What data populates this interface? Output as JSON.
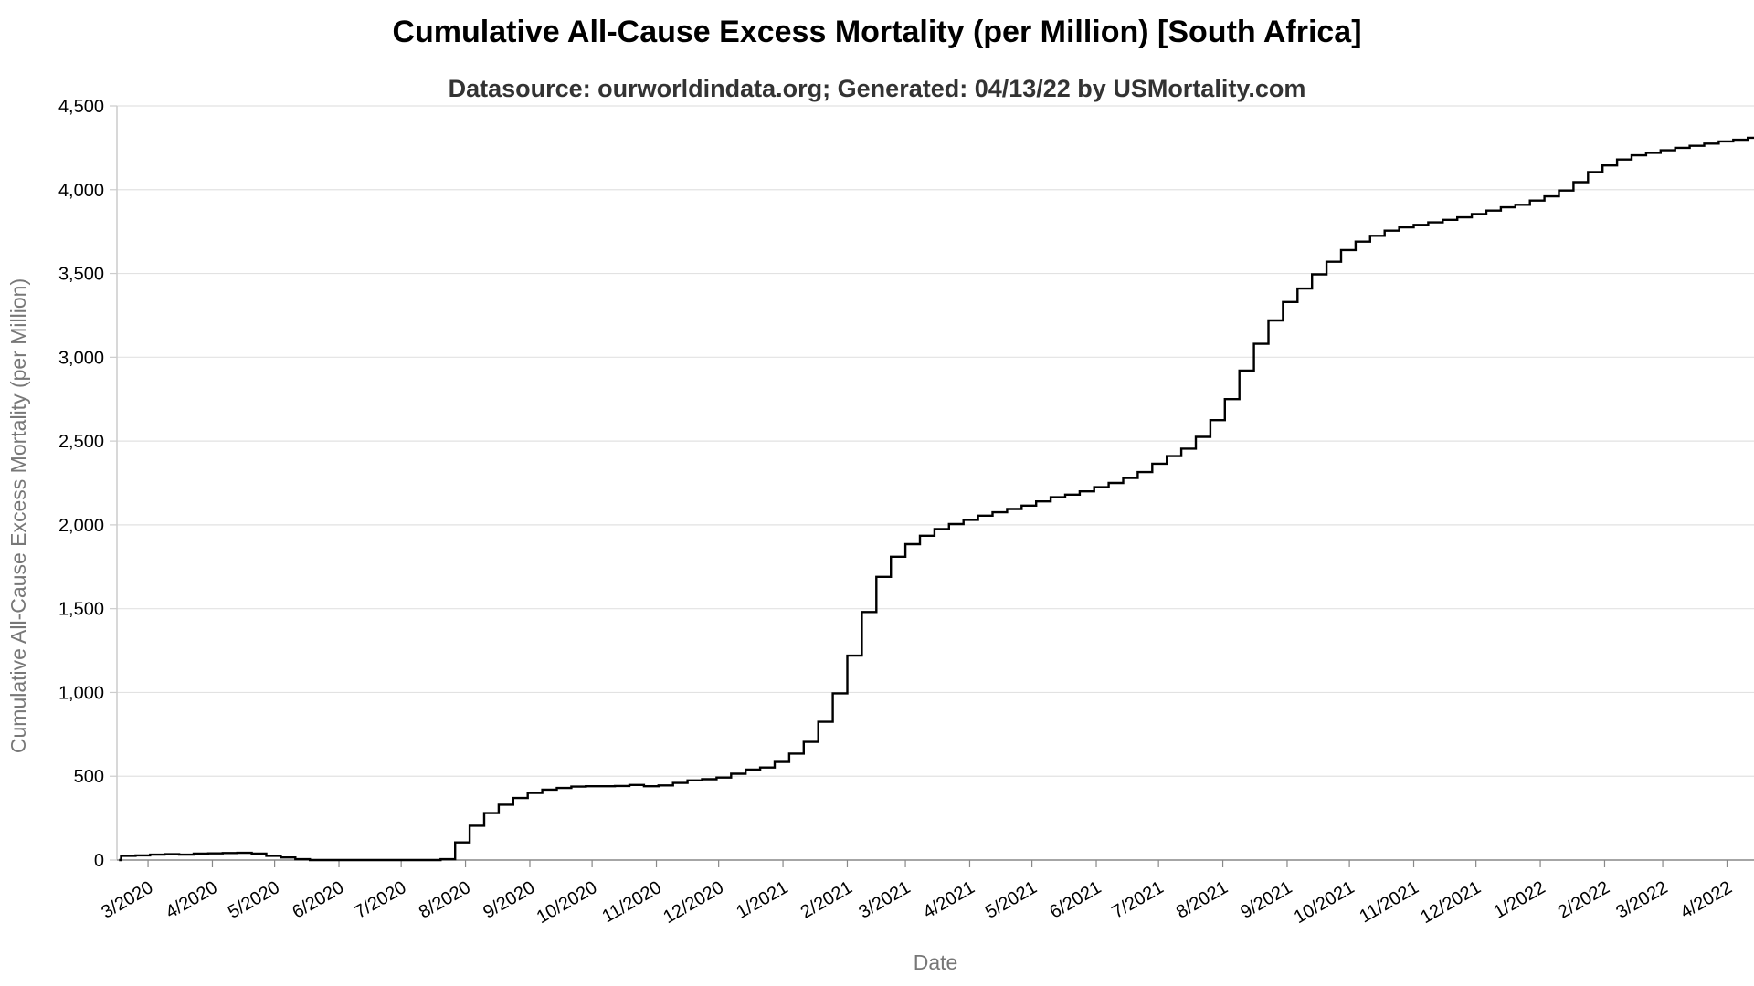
{
  "chart_data": {
    "type": "line",
    "title": "Cumulative All-Cause Excess Mortality (per Million) [South Africa]",
    "subtitle": "Datasource: ourworldindata.org; Generated: 04/13/22 by USMortality.com",
    "xlabel": "Date",
    "ylabel": "Cumulative All-Cause Excess Mortality (per Million)",
    "ylim": [
      0,
      4500
    ],
    "xlim": [
      "2020-02-15",
      "2022-04-14"
    ],
    "grid": "horizontal",
    "line_style": "step",
    "y_ticks": [
      {
        "value": 0,
        "label": "0"
      },
      {
        "value": 500,
        "label": "500"
      },
      {
        "value": 1000,
        "label": "1,000"
      },
      {
        "value": 1500,
        "label": "1,500"
      },
      {
        "value": 2000,
        "label": "2,000"
      },
      {
        "value": 2500,
        "label": "2,500"
      },
      {
        "value": 3000,
        "label": "3,000"
      },
      {
        "value": 3500,
        "label": "3,500"
      },
      {
        "value": 4000,
        "label": "4,000"
      },
      {
        "value": 4500,
        "label": "4,500"
      }
    ],
    "x_ticks": [
      {
        "date": "2020-03-01",
        "label": "3/2020"
      },
      {
        "date": "2020-04-01",
        "label": "4/2020"
      },
      {
        "date": "2020-05-01",
        "label": "5/2020"
      },
      {
        "date": "2020-06-01",
        "label": "6/2020"
      },
      {
        "date": "2020-07-01",
        "label": "7/2020"
      },
      {
        "date": "2020-08-01",
        "label": "8/2020"
      },
      {
        "date": "2020-09-01",
        "label": "9/2020"
      },
      {
        "date": "2020-10-01",
        "label": "10/2020"
      },
      {
        "date": "2020-11-01",
        "label": "11/2020"
      },
      {
        "date": "2020-12-01",
        "label": "12/2020"
      },
      {
        "date": "2021-01-01",
        "label": "1/2021"
      },
      {
        "date": "2021-02-01",
        "label": "2/2021"
      },
      {
        "date": "2021-03-01",
        "label": "3/2021"
      },
      {
        "date": "2021-04-01",
        "label": "4/2021"
      },
      {
        "date": "2021-05-01",
        "label": "5/2021"
      },
      {
        "date": "2021-06-01",
        "label": "6/2021"
      },
      {
        "date": "2021-07-01",
        "label": "7/2021"
      },
      {
        "date": "2021-08-01",
        "label": "8/2021"
      },
      {
        "date": "2021-09-01",
        "label": "9/2021"
      },
      {
        "date": "2021-10-01",
        "label": "10/2021"
      },
      {
        "date": "2021-11-01",
        "label": "11/2021"
      },
      {
        "date": "2021-12-01",
        "label": "12/2021"
      },
      {
        "date": "2022-01-01",
        "label": "1/2022"
      },
      {
        "date": "2022-02-01",
        "label": "2/2022"
      },
      {
        "date": "2022-03-01",
        "label": "3/2022"
      },
      {
        "date": "2022-04-01",
        "label": "4/2022"
      }
    ],
    "series": [
      {
        "color": "#000000",
        "points": [
          [
            "2020-02-16",
            0
          ],
          [
            "2020-02-17",
            25
          ],
          [
            "2020-02-24",
            28
          ],
          [
            "2020-03-02",
            32
          ],
          [
            "2020-03-09",
            35
          ],
          [
            "2020-03-16",
            32
          ],
          [
            "2020-03-23",
            38
          ],
          [
            "2020-03-30",
            40
          ],
          [
            "2020-04-06",
            42
          ],
          [
            "2020-04-13",
            43
          ],
          [
            "2020-04-20",
            38
          ],
          [
            "2020-04-27",
            25
          ],
          [
            "2020-05-04",
            15
          ],
          [
            "2020-05-11",
            5
          ],
          [
            "2020-05-18",
            0
          ],
          [
            "2020-07-13",
            0
          ],
          [
            "2020-07-20",
            5
          ],
          [
            "2020-07-27",
            105
          ],
          [
            "2020-08-03",
            205
          ],
          [
            "2020-08-10",
            280
          ],
          [
            "2020-08-17",
            330
          ],
          [
            "2020-08-24",
            370
          ],
          [
            "2020-08-31",
            400
          ],
          [
            "2020-09-07",
            420
          ],
          [
            "2020-09-14",
            430
          ],
          [
            "2020-09-21",
            438
          ],
          [
            "2020-09-28",
            440
          ],
          [
            "2020-10-05",
            440
          ],
          [
            "2020-10-12",
            442
          ],
          [
            "2020-10-19",
            448
          ],
          [
            "2020-10-26",
            440
          ],
          [
            "2020-11-02",
            445
          ],
          [
            "2020-11-09",
            460
          ],
          [
            "2020-11-16",
            475
          ],
          [
            "2020-11-23",
            482
          ],
          [
            "2020-11-30",
            492
          ],
          [
            "2020-12-07",
            515
          ],
          [
            "2020-12-14",
            540
          ],
          [
            "2020-12-21",
            552
          ],
          [
            "2020-12-28",
            585
          ],
          [
            "2021-01-04",
            635
          ],
          [
            "2021-01-11",
            705
          ],
          [
            "2021-01-18",
            825
          ],
          [
            "2021-01-25",
            995
          ],
          [
            "2021-02-01",
            1220
          ],
          [
            "2021-02-08",
            1480
          ],
          [
            "2021-02-15",
            1690
          ],
          [
            "2021-02-22",
            1810
          ],
          [
            "2021-03-01",
            1885
          ],
          [
            "2021-03-08",
            1935
          ],
          [
            "2021-03-15",
            1975
          ],
          [
            "2021-03-22",
            2005
          ],
          [
            "2021-03-29",
            2030
          ],
          [
            "2021-04-05",
            2055
          ],
          [
            "2021-04-12",
            2075
          ],
          [
            "2021-04-19",
            2095
          ],
          [
            "2021-04-26",
            2115
          ],
          [
            "2021-05-03",
            2140
          ],
          [
            "2021-05-10",
            2165
          ],
          [
            "2021-05-17",
            2180
          ],
          [
            "2021-05-24",
            2200
          ],
          [
            "2021-05-31",
            2225
          ],
          [
            "2021-06-07",
            2250
          ],
          [
            "2021-06-14",
            2280
          ],
          [
            "2021-06-21",
            2315
          ],
          [
            "2021-06-28",
            2365
          ],
          [
            "2021-07-05",
            2410
          ],
          [
            "2021-07-12",
            2455
          ],
          [
            "2021-07-19",
            2525
          ],
          [
            "2021-07-26",
            2625
          ],
          [
            "2021-08-02",
            2750
          ],
          [
            "2021-08-09",
            2920
          ],
          [
            "2021-08-16",
            3080
          ],
          [
            "2021-08-23",
            3220
          ],
          [
            "2021-08-30",
            3330
          ],
          [
            "2021-09-06",
            3410
          ],
          [
            "2021-09-13",
            3495
          ],
          [
            "2021-09-20",
            3570
          ],
          [
            "2021-09-27",
            3640
          ],
          [
            "2021-10-04",
            3690
          ],
          [
            "2021-10-11",
            3725
          ],
          [
            "2021-10-18",
            3755
          ],
          [
            "2021-10-25",
            3775
          ],
          [
            "2021-11-01",
            3790
          ],
          [
            "2021-11-08",
            3805
          ],
          [
            "2021-11-15",
            3820
          ],
          [
            "2021-11-22",
            3835
          ],
          [
            "2021-11-29",
            3855
          ],
          [
            "2021-12-06",
            3875
          ],
          [
            "2021-12-13",
            3895
          ],
          [
            "2021-12-20",
            3910
          ],
          [
            "2021-12-27",
            3935
          ],
          [
            "2022-01-03",
            3960
          ],
          [
            "2022-01-10",
            3995
          ],
          [
            "2022-01-17",
            4045
          ],
          [
            "2022-01-24",
            4105
          ],
          [
            "2022-01-31",
            4145
          ],
          [
            "2022-02-07",
            4180
          ],
          [
            "2022-02-14",
            4205
          ],
          [
            "2022-02-21",
            4220
          ],
          [
            "2022-02-28",
            4235
          ],
          [
            "2022-03-07",
            4250
          ],
          [
            "2022-03-14",
            4262
          ],
          [
            "2022-03-21",
            4275
          ],
          [
            "2022-03-28",
            4288
          ],
          [
            "2022-04-04",
            4298
          ],
          [
            "2022-04-11",
            4310
          ],
          [
            "2022-04-14",
            4312
          ]
        ]
      }
    ]
  }
}
